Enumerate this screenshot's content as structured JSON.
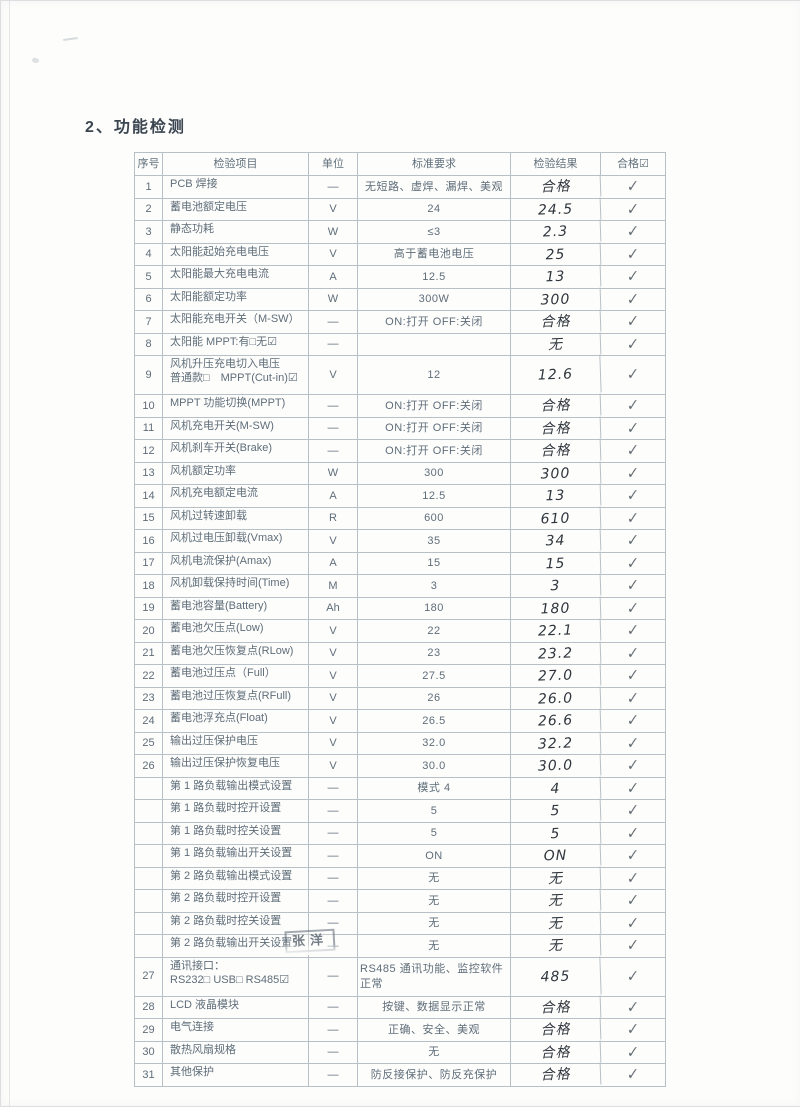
{
  "page": {
    "title": "2、功能检测"
  },
  "colors": {
    "print_ink": "#5f6d79",
    "hand_ink": "#30363d",
    "border": "#b7c0c6",
    "paper": "#fdfdfc"
  },
  "stamp": {
    "text": "张洋"
  },
  "table": {
    "headers": {
      "no": "序号",
      "item": "检验项目",
      "unit": "单位",
      "standard": "标准要求",
      "result": "检验结果",
      "pass": "合格☑"
    },
    "rows": [
      {
        "no": "1",
        "item": "PCB 焊接",
        "unit": "—",
        "standard": "无短路、虚焊、漏焊、美观",
        "result": "合格",
        "pass": "✓"
      },
      {
        "no": "2",
        "item": "蓄电池额定电压",
        "unit": "V",
        "standard": "24",
        "result": "24.5",
        "pass": "✓"
      },
      {
        "no": "3",
        "item": "静态功耗",
        "unit": "W",
        "standard": "≤3",
        "result": "2.3",
        "pass": "✓"
      },
      {
        "no": "4",
        "item": "太阳能起始充电电压",
        "unit": "V",
        "standard": "高于蓄电池电压",
        "result": "25",
        "pass": "✓"
      },
      {
        "no": "5",
        "item": "太阳能最大充电电流",
        "unit": "A",
        "standard": "12.5",
        "result": "13",
        "pass": "✓"
      },
      {
        "no": "6",
        "item": "太阳能额定功率",
        "unit": "W",
        "standard": "300W",
        "result": "300",
        "pass": "✓"
      },
      {
        "no": "7",
        "item": "太阳能充电开关（M-SW）",
        "unit": "—",
        "standard": "ON:打开  OFF:关闭",
        "result": "合格",
        "pass": "✓"
      },
      {
        "no": "8",
        "item": "太阳能 MPPT:有□无☑",
        "unit": "—",
        "standard": "",
        "result": "无",
        "pass": "✓"
      },
      {
        "no": "9",
        "item": "风机升压充电切入电压",
        "item2": "普通款□　MPPT(Cut-in)☑",
        "unit": "V",
        "standard": "12",
        "result": "12.6",
        "pass": "✓"
      },
      {
        "no": "10",
        "item": "MPPT 功能切换(MPPT)",
        "unit": "—",
        "standard": "ON:打开  OFF:关闭",
        "result": "合格",
        "pass": "✓"
      },
      {
        "no": "11",
        "item": "风机充电开关(M-SW)",
        "unit": "—",
        "standard": "ON:打开  OFF:关闭",
        "result": "合格",
        "pass": "✓"
      },
      {
        "no": "12",
        "item": "风机刹车开关(Brake)",
        "unit": "—",
        "standard": "ON:打开  OFF:关闭",
        "result": "合格",
        "pass": "✓"
      },
      {
        "no": "13",
        "item": "风机额定功率",
        "unit": "W",
        "standard": "300",
        "result": "300",
        "pass": "✓"
      },
      {
        "no": "14",
        "item": "风机充电额定电流",
        "unit": "A",
        "standard": "12.5",
        "result": "13",
        "pass": "✓"
      },
      {
        "no": "15",
        "item": "风机过转速卸载",
        "unit": "R",
        "standard": "600",
        "result": "610",
        "pass": "✓"
      },
      {
        "no": "16",
        "item": "风机过电压卸载(Vmax)",
        "unit": "V",
        "standard": "35",
        "result": "34",
        "pass": "✓"
      },
      {
        "no": "17",
        "item": "风机电流保护(Amax)",
        "unit": "A",
        "standard": "15",
        "result": "15",
        "pass": "✓"
      },
      {
        "no": "18",
        "item": "风机卸载保持时间(Time)",
        "unit": "M",
        "standard": "3",
        "result": "3",
        "pass": "✓"
      },
      {
        "no": "19",
        "item": "蓄电池容量(Battery)",
        "unit": "Ah",
        "standard": "180",
        "result": "180",
        "pass": "✓"
      },
      {
        "no": "20",
        "item": "蓄电池欠压点(Low)",
        "unit": "V",
        "standard": "22",
        "result": "22.1",
        "pass": "✓"
      },
      {
        "no": "21",
        "item": "蓄电池欠压恢复点(RLow)",
        "unit": "V",
        "standard": "23",
        "result": "23.2",
        "pass": "✓"
      },
      {
        "no": "22",
        "item": "蓄电池过压点（Full）",
        "unit": "V",
        "standard": "27.5",
        "result": "27.0",
        "pass": "✓"
      },
      {
        "no": "23",
        "item": "蓄电池过压恢复点(RFull)",
        "unit": "V",
        "standard": "26",
        "result": "26.0",
        "pass": "✓"
      },
      {
        "no": "24",
        "item": "蓄电池浮充点(Float)",
        "unit": "V",
        "standard": "26.5",
        "result": "26.6",
        "pass": "✓"
      },
      {
        "no": "25",
        "item": "输出过压保护电压",
        "unit": "V",
        "standard": "32.0",
        "result": "32.2",
        "pass": "✓"
      },
      {
        "no": "26",
        "item": "输出过压保护恢复电压",
        "unit": "V",
        "standard": "30.0",
        "result": "30.0",
        "pass": "✓"
      },
      {
        "no": "",
        "item": "第 1 路负载输出模式设置",
        "unit": "—",
        "standard": "模式 4",
        "result": "4",
        "pass": "✓"
      },
      {
        "no": "",
        "item": "第 1 路负载时控开设置",
        "unit": "—",
        "standard": "5",
        "result": "5",
        "pass": "✓"
      },
      {
        "no": "",
        "item": "第 1 路负载时控关设置",
        "unit": "—",
        "standard": "5",
        "result": "5",
        "pass": "✓"
      },
      {
        "no": "",
        "item": "第 1 路负载输出开关设置",
        "unit": "—",
        "standard": "ON",
        "result": "ON",
        "pass": "✓"
      },
      {
        "no": "",
        "item": "第 2 路负载输出模式设置",
        "unit": "—",
        "standard": "无",
        "result": "无",
        "pass": "✓"
      },
      {
        "no": "",
        "item": "第 2 路负载时控开设置",
        "unit": "—",
        "standard": "无",
        "result": "无",
        "pass": "✓"
      },
      {
        "no": "",
        "item": "第 2 路负载时控关设置",
        "unit": "—",
        "standard": "无",
        "result": "无",
        "pass": "✓"
      },
      {
        "no": "",
        "item": "第 2 路负载输出开关设置",
        "unit": "—",
        "standard": "无",
        "result": "无",
        "pass": "✓"
      },
      {
        "no": "27",
        "item": "通讯接口：",
        "item2": "RS232□ USB□ RS485☑",
        "unit": "—",
        "standard": "RS485 通讯功能、监控软件正常",
        "result": "485",
        "pass": "✓"
      },
      {
        "no": "28",
        "item": "LCD 液晶模块",
        "unit": "—",
        "standard": "按键、数据显示正常",
        "result": "合格",
        "pass": "✓"
      },
      {
        "no": "29",
        "item": "电气连接",
        "unit": "—",
        "standard": "正确、安全、美观",
        "result": "合格",
        "pass": "✓"
      },
      {
        "no": "30",
        "item": "散热风扇规格",
        "unit": "—",
        "standard": "无",
        "result": "合格",
        "pass": "✓"
      },
      {
        "no": "31",
        "item": "其他保护",
        "unit": "—",
        "standard": "防反接保护、防反充保护",
        "result": "合格",
        "pass": "✓"
      }
    ]
  }
}
